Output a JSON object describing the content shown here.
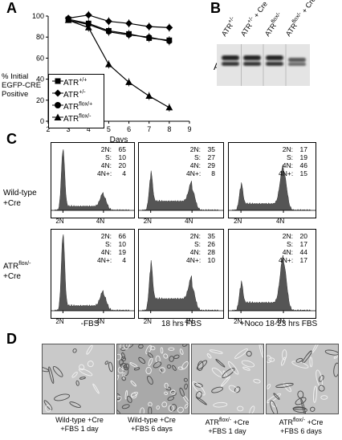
{
  "panels": {
    "a": {
      "letter": "A",
      "ylabel_lines": [
        "% Initial",
        "EGFP-CRE",
        "Positive"
      ],
      "xlabel": "Days",
      "yticks": [
        "100",
        "80",
        "60",
        "40",
        "20",
        "0"
      ],
      "xticks": [
        "2",
        "3",
        "4",
        "5",
        "6",
        "7",
        "8",
        "9"
      ],
      "legend": [
        {
          "base": "ATR",
          "sup": "+/+",
          "marker": "square"
        },
        {
          "base": "ATR",
          "sup": "+/-",
          "marker": "diamond"
        },
        {
          "base": "ATR",
          "sup": "flox/+",
          "marker": "circle"
        },
        {
          "base": "ATR",
          "sup": "flox/-",
          "marker": "triangle"
        }
      ]
    },
    "b": {
      "letter": "B",
      "band_label": "ATR",
      "lanes": [
        {
          "base": "ATR",
          "sup": "+/-",
          "suffix": ""
        },
        {
          "base": "ATR",
          "sup": "+/-",
          "suffix": " + Cre"
        },
        {
          "base": "ATR",
          "sup": "flox/-",
          "suffix": ""
        },
        {
          "base": "ATR",
          "sup": "flox/-",
          "suffix": " + Cre"
        }
      ]
    },
    "c": {
      "letter": "C",
      "row_labels": [
        {
          "lines": [
            "Wild-type",
            "+Cre"
          ]
        },
        {
          "base": "ATR",
          "sup": "flox/-",
          "line2": "+Cre"
        }
      ],
      "col_labels": [
        "-FBS",
        "18 hrs FBS",
        "+Noco 18-23 hrs FBS"
      ],
      "peak_labels": {
        "a": "2N",
        "b": "4N"
      },
      "stats": [
        [
          [
            [
              "2N:",
              "65"
            ],
            [
              "S:",
              "10"
            ],
            [
              "4N:",
              "20"
            ],
            [
              "4N+:",
              "4"
            ]
          ],
          [
            [
              "2N:",
              "35"
            ],
            [
              "S:",
              "27"
            ],
            [
              "4N:",
              "29"
            ],
            [
              "4N+:",
              "8"
            ]
          ],
          [
            [
              "2N:",
              "17"
            ],
            [
              "S:",
              "19"
            ],
            [
              "4N:",
              "46"
            ],
            [
              "4N+:",
              "15"
            ]
          ]
        ],
        [
          [
            [
              "2N:",
              "66"
            ],
            [
              "S:",
              "10"
            ],
            [
              "4N:",
              "19"
            ],
            [
              "4N+:",
              "4"
            ]
          ],
          [
            [
              "2N:",
              "35"
            ],
            [
              "S:",
              "26"
            ],
            [
              "4N:",
              "28"
            ],
            [
              "4N+:",
              "10"
            ]
          ],
          [
            [
              "2N:",
              "20"
            ],
            [
              "S:",
              "17"
            ],
            [
              "4N:",
              "44"
            ],
            [
              "4N+:",
              "17"
            ]
          ]
        ]
      ]
    },
    "d": {
      "letter": "D",
      "captions": [
        {
          "line1": "Wild-type +Cre",
          "line2": "+FBS 1 day"
        },
        {
          "line1": "Wild-type +Cre",
          "line2": "+FBS 6 days"
        },
        {
          "base": "ATR",
          "sup": "flox/-",
          "tail": " +Cre",
          "line2": "+FBS 1 day"
        },
        {
          "base": "ATR",
          "sup": "flox/-",
          "tail": " +Cre",
          "line2": "+FBS 6 days"
        }
      ]
    }
  },
  "chart_data": {
    "type": "line",
    "xlabel": "Days",
    "ylabel": "% Initial EGFP-CRE Positive",
    "xlim": [
      2,
      9
    ],
    "ylim": [
      0,
      100
    ],
    "x": [
      3,
      4,
      5,
      6,
      7,
      8
    ],
    "series": [
      {
        "name": "ATR+/+",
        "marker": "square",
        "values": [
          97,
          93,
          86,
          83,
          79,
          77
        ]
      },
      {
        "name": "ATR+/-",
        "marker": "diamond",
        "values": [
          98,
          101,
          95,
          93,
          90,
          89
        ]
      },
      {
        "name": "ATRflox/+",
        "marker": "circle",
        "values": [
          96,
          92,
          85,
          82,
          80,
          76
        ]
      },
      {
        "name": "ATRflox/-",
        "marker": "triangle",
        "values": [
          96,
          89,
          54,
          37,
          24,
          13
        ]
      }
    ]
  }
}
